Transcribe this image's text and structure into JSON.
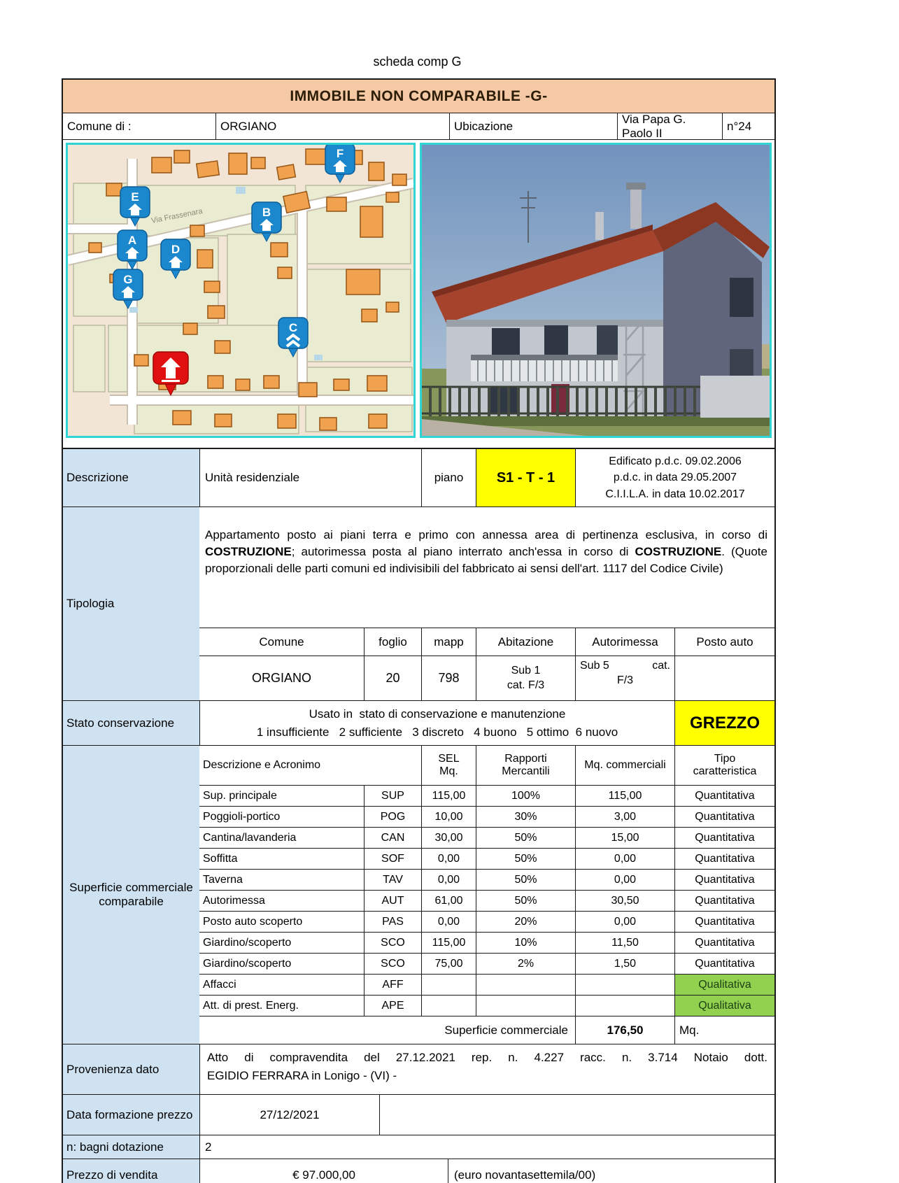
{
  "title": "scheda comp G",
  "banner": "IMMOBILE NON COMPARABILE -G-",
  "location": {
    "comune_label": "Comune di :",
    "comune": "ORGIANO",
    "ubicazione_label": "Ubicazione",
    "via": "Via Papa G. Paolo II",
    "civico": "n°24"
  },
  "map": {
    "street": "Via Frassenara",
    "markers": [
      {
        "letter": "E"
      },
      {
        "letter": "A"
      },
      {
        "letter": "G"
      },
      {
        "letter": "D"
      },
      {
        "letter": "B"
      },
      {
        "letter": "F"
      },
      {
        "letter": "C"
      }
    ]
  },
  "descrizione": {
    "label": "Descrizione",
    "value": "Unità residenziale",
    "piano_label": "piano",
    "piano": "S1 - T - 1",
    "edificato": [
      "Edificato p.d.c. 09.02.2006",
      "p.d.c. in data 29.05.2007",
      "C.I.I.L.A. in data 10.02.2017"
    ]
  },
  "tipologia": {
    "label": "Tipologia",
    "segments": [
      {
        "text": "Appartamento posto ai piani terra e primo con annessa area di pertinenza esclusiva, in corso di ",
        "bold": false
      },
      {
        "text": "COSTRUZIONE",
        "bold": true
      },
      {
        "text": ";  autorimessa posta al piano interrato anch'essa in corso di ",
        "bold": false
      },
      {
        "text": "COSTRUZIONE",
        "bold": true
      },
      {
        "text": ". (Quote proporzionali delle parti comuni ed indivisibili del fabbricato ai sensi dell'art. 1117 del Codice Civile)",
        "bold": false
      }
    ]
  },
  "catasto": {
    "headers": [
      "Comune",
      "foglio",
      "mapp",
      "Abitazione",
      "Autorimessa",
      "Posto auto"
    ],
    "comune": "ORGIANO",
    "foglio": "20",
    "mapp": "798",
    "abitazione_l1": "Sub 1",
    "abitazione_l2": "cat. F/3",
    "autorimessa_l1a": "Sub 5",
    "autorimessa_l1b": "cat.",
    "autorimessa_l2": "F/3",
    "posto_auto": ""
  },
  "stato": {
    "label": "Stato conservazione",
    "line1": "Usato in  stato di conservazione e manutenzione",
    "line2": "1 insufficiente   2 sufficiente   3 discreto   4 buono   5 ottimo  6 nuovo",
    "badge": "GREZZO"
  },
  "superficie": {
    "label": "Superficie commerciale comparabile",
    "header": {
      "desc": "Descrizione e Acronimo",
      "sel": "SEL\nMq.",
      "rapporti": "Rapporti\nMercantili",
      "mq": "Mq. commerciali",
      "tipo": "Tipo\ncaratteristica"
    },
    "rows": [
      {
        "name": "Sup. principale",
        "acr": "SUP",
        "sel": "115,00",
        "rap": "100%",
        "mq": "115,00",
        "tipo": "Quantitativa"
      },
      {
        "name": "Poggioli-portico",
        "acr": "POG",
        "sel": "10,00",
        "rap": "30%",
        "mq": "3,00",
        "tipo": "Quantitativa"
      },
      {
        "name": "Cantina/lavanderia",
        "acr": "CAN",
        "sel": "30,00",
        "rap": "50%",
        "mq": "15,00",
        "tipo": "Quantitativa"
      },
      {
        "name": "Soffitta",
        "acr": "SOF",
        "sel": "0,00",
        "rap": "50%",
        "mq": "0,00",
        "tipo": "Quantitativa"
      },
      {
        "name": "Taverna",
        "acr": "TAV",
        "sel": "0,00",
        "rap": "50%",
        "mq": "0,00",
        "tipo": "Quantitativa"
      },
      {
        "name": "Autorimessa",
        "acr": "AUT",
        "sel": "61,00",
        "rap": "50%",
        "mq": "30,50",
        "tipo": "Quantitativa"
      },
      {
        "name": "Posto auto scoperto",
        "acr": "PAS",
        "sel": "0,00",
        "rap": "20%",
        "mq": "0,00",
        "tipo": "Quantitativa"
      },
      {
        "name": "Giardino/scoperto",
        "acr": "SCO",
        "sel": "115,00",
        "rap": "10%",
        "mq": "11,50",
        "tipo": "Quantitativa"
      },
      {
        "name": "Giardino/scoperto",
        "acr": "SCO",
        "sel": "75,00",
        "rap": "2%",
        "mq": "1,50",
        "tipo": "Quantitativa"
      },
      {
        "name": "Affacci",
        "acr": "AFF",
        "sel": "",
        "rap": "",
        "mq": "",
        "tipo": "Qualitativa"
      },
      {
        "name": "Att. di prest. Energ.",
        "acr": "APE",
        "sel": "",
        "rap": "",
        "mq": "",
        "tipo": "Qualitativa"
      }
    ],
    "total_label": "Superficie commerciale",
    "total_value": "176,50",
    "total_unit": "Mq."
  },
  "provenienza": {
    "label": "Provenienza dato",
    "line1": "Atto di compravendita del 27.12.2021 rep. n. 4.227 racc. n. 3.714 Notaio dott.",
    "line2": "EGIDIO FERRARA  in Lonigo  - (VI) -"
  },
  "data_formazione": {
    "label": "Data formazione prezzo",
    "value": "27/12/2021"
  },
  "bagni": {
    "label": "n: bagni dotazione",
    "value": "2"
  },
  "prezzo": {
    "label": "Prezzo di vendita",
    "value": "€ 97.000,00",
    "testo": "(euro novantasettemila/00)"
  },
  "colors": {
    "banner_bg": "#f6c9a5",
    "label_bg": "#cfe2f2",
    "highlight_yellow": "#ffff00",
    "qualitativa_green": "#92d050",
    "image_border_cyan": "#2fd5d5",
    "marker_blue": "#1b87cc",
    "marker_red": "#e01010"
  }
}
